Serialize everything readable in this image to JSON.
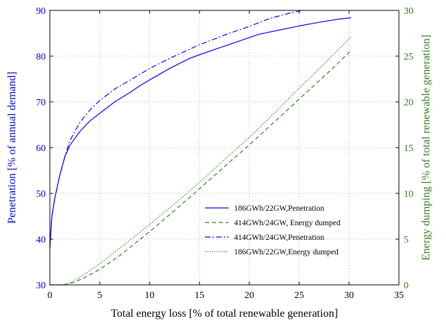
{
  "chart_data": {
    "type": "line",
    "title": "",
    "xlabel": "Total energy loss [% of total renewable generation]",
    "ylabel_left": "Penetration [% of annual demand]",
    "ylabel_right": "Energy dumping [% of total renewable generation]",
    "xlim": [
      0,
      35
    ],
    "ylim_left": [
      30,
      90
    ],
    "ylim_right": [
      0,
      30
    ],
    "x_ticks": [
      0,
      5,
      10,
      15,
      20,
      25,
      30,
      35
    ],
    "y_left_ticks": [
      30,
      40,
      50,
      60,
      70,
      80,
      90
    ],
    "y_right_ticks": [
      0,
      5,
      10,
      15,
      20,
      25,
      30
    ],
    "grid": true,
    "legend_position": "lower-right",
    "colors": {
      "left_axis": "#0000cc",
      "right_axis": "#2e7d1e",
      "frame": "#000000",
      "grid": "#999999"
    },
    "series": [
      {
        "name": "186GWh/22GW,Penetration",
        "axis": "left",
        "style": "solid",
        "color": "#0000ff",
        "x": [
          0,
          0.2,
          0.5,
          1.0,
          1.5,
          2.0,
          3.0,
          4.0,
          5.0,
          6.5,
          8.0,
          9.0,
          10.0,
          12.0,
          14.0,
          15.0,
          17.0,
          19.0,
          21.0,
          23.0,
          25.0,
          27.0,
          29.0,
          30.2
        ],
        "y": [
          38,
          45,
          49,
          54,
          58,
          60.5,
          63.5,
          65.8,
          67.5,
          70,
          72,
          73.5,
          74.8,
          77.3,
          79.5,
          80.3,
          81.8,
          83.3,
          84.8,
          85.7,
          86.6,
          87.4,
          88.1,
          88.4
        ]
      },
      {
        "name": "414GWh/24GW, Energy dumped",
        "axis": "right",
        "style": "dashed",
        "color": "#2e7d1e",
        "x": [
          0,
          1.5,
          2.5,
          3.5,
          5,
          7,
          10,
          13,
          15,
          18,
          20,
          23,
          25,
          28,
          30.2
        ],
        "y": [
          0,
          0,
          0.3,
          0.8,
          1.7,
          3.2,
          5.8,
          8.6,
          10.5,
          13.4,
          15.3,
          18.3,
          20.3,
          23.3,
          25.6
        ]
      },
      {
        "name": "414GWh/24GW,Penetration",
        "axis": "left",
        "style": "dashdot",
        "color": "#0000ff",
        "x": [
          0,
          0.2,
          0.5,
          1.0,
          1.5,
          2.0,
          3.0,
          4.0,
          5.0,
          6.5,
          8.0,
          10.0,
          12.0,
          15.0,
          18.0,
          20.0,
          22.0,
          24.0,
          25.3
        ],
        "y": [
          38,
          45,
          49,
          54,
          58,
          61.5,
          65.5,
          68.2,
          70.3,
          72.8,
          74.7,
          77.3,
          79.5,
          82.5,
          85,
          86.5,
          88.2,
          89.4,
          90
        ]
      },
      {
        "name": "186GWh/22GW,Energy dumped",
        "axis": "right",
        "style": "dotted",
        "color": "#2e7d1e",
        "x": [
          0,
          1.0,
          2.0,
          3.0,
          5,
          7,
          10,
          13,
          15,
          18,
          20,
          23,
          25,
          28,
          30.2
        ],
        "y": [
          0,
          0,
          0.2,
          0.8,
          2.3,
          4.0,
          6.6,
          9.3,
          11.2,
          14.2,
          16.1,
          19.3,
          21.5,
          24.7,
          27.1
        ]
      }
    ]
  }
}
